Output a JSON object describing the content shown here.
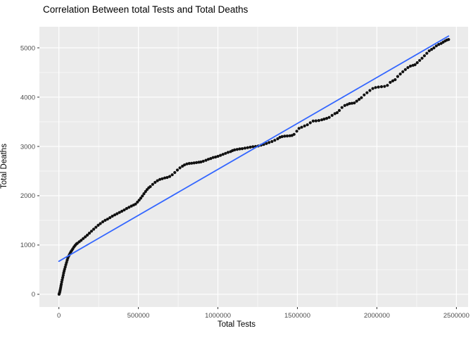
{
  "chart_data": {
    "type": "scatter",
    "title": "Correlation Between total Tests and Total Deaths",
    "xlabel": "Total Tests",
    "ylabel": "Total Deaths",
    "x_ticks": [
      0,
      500000,
      1000000,
      1500000,
      2000000,
      2500000
    ],
    "x_tick_labels": [
      "0",
      "500000",
      "1000000",
      "1500000",
      "2000000",
      "2500000"
    ],
    "y_ticks": [
      0,
      1000,
      2000,
      3000,
      4000,
      5000
    ],
    "y_tick_labels": [
      "0",
      "1000",
      "2000",
      "3000",
      "4000",
      "5000"
    ],
    "xlim": [
      -122500,
      2573500
    ],
    "ylim": [
      -258,
      5428
    ],
    "grid": "major-and-minor",
    "legend": "none",
    "panel_bg": "#EBEBEB",
    "grid_color": "#FFFFFF",
    "tick_color": "#333333",
    "tick_text_color": "#4D4D4D",
    "point_color": "#111111",
    "point_radius": 2.1,
    "trend_line": {
      "color": "#3366FF",
      "width": 1.8,
      "x": [
        0,
        2451000
      ],
      "y": [
        670,
        5240
      ]
    },
    "points": [
      [
        1000,
        0
      ],
      [
        3000,
        15
      ],
      [
        5000,
        40
      ],
      [
        7000,
        70
      ],
      [
        9000,
        100
      ],
      [
        11000,
        135
      ],
      [
        13000,
        170
      ],
      [
        15000,
        205
      ],
      [
        18000,
        250
      ],
      [
        21000,
        295
      ],
      [
        24000,
        340
      ],
      [
        27000,
        385
      ],
      [
        30000,
        430
      ],
      [
        33000,
        470
      ],
      [
        36000,
        510
      ],
      [
        40000,
        555
      ],
      [
        44000,
        600
      ],
      [
        48000,
        645
      ],
      [
        52000,
        690
      ],
      [
        56000,
        730
      ],
      [
        61000,
        770
      ],
      [
        66000,
        805
      ],
      [
        71000,
        835
      ],
      [
        76000,
        865
      ],
      [
        82000,
        895
      ],
      [
        88000,
        925
      ],
      [
        95000,
        960
      ],
      [
        102000,
        990
      ],
      [
        110000,
        1020
      ],
      [
        116000,
        1035
      ],
      [
        128000,
        1065
      ],
      [
        140000,
        1095
      ],
      [
        153000,
        1130
      ],
      [
        166000,
        1165
      ],
      [
        179000,
        1200
      ],
      [
        192000,
        1240
      ],
      [
        205000,
        1280
      ],
      [
        219000,
        1320
      ],
      [
        233000,
        1360
      ],
      [
        247000,
        1400
      ],
      [
        261000,
        1435
      ],
      [
        276000,
        1470
      ],
      [
        291000,
        1500
      ],
      [
        306000,
        1525
      ],
      [
        321000,
        1555
      ],
      [
        336000,
        1585
      ],
      [
        351000,
        1610
      ],
      [
        366000,
        1635
      ],
      [
        381000,
        1660
      ],
      [
        396000,
        1685
      ],
      [
        411000,
        1710
      ],
      [
        426000,
        1740
      ],
      [
        441000,
        1765
      ],
      [
        456000,
        1790
      ],
      [
        470000,
        1810
      ],
      [
        482000,
        1830
      ],
      [
        494000,
        1870
      ],
      [
        505000,
        1910
      ],
      [
        515000,
        1950
      ],
      [
        525000,
        1995
      ],
      [
        535000,
        2040
      ],
      [
        545000,
        2085
      ],
      [
        555000,
        2125
      ],
      [
        565000,
        2160
      ],
      [
        575000,
        2185
      ],
      [
        590000,
        2230
      ],
      [
        605000,
        2270
      ],
      [
        620000,
        2305
      ],
      [
        635000,
        2330
      ],
      [
        650000,
        2345
      ],
      [
        666000,
        2360
      ],
      [
        681000,
        2370
      ],
      [
        697000,
        2390
      ],
      [
        713000,
        2425
      ],
      [
        729000,
        2470
      ],
      [
        745000,
        2520
      ],
      [
        761000,
        2565
      ],
      [
        777000,
        2600
      ],
      [
        790000,
        2625
      ],
      [
        805000,
        2645
      ],
      [
        820000,
        2655
      ],
      [
        835000,
        2660
      ],
      [
        850000,
        2665
      ],
      [
        865000,
        2672
      ],
      [
        880000,
        2680
      ],
      [
        893000,
        2685
      ],
      [
        908000,
        2700
      ],
      [
        925000,
        2720
      ],
      [
        940000,
        2740
      ],
      [
        955000,
        2755
      ],
      [
        970000,
        2775
      ],
      [
        985000,
        2785
      ],
      [
        1000000,
        2800
      ],
      [
        1016000,
        2820
      ],
      [
        1032000,
        2840
      ],
      [
        1048000,
        2860
      ],
      [
        1064000,
        2880
      ],
      [
        1080000,
        2895
      ],
      [
        1092000,
        2915
      ],
      [
        1105000,
        2930
      ],
      [
        1121000,
        2940
      ],
      [
        1137000,
        2950
      ],
      [
        1153000,
        2955
      ],
      [
        1170000,
        2965
      ],
      [
        1187000,
        2975
      ],
      [
        1204000,
        2985
      ],
      [
        1220000,
        2995
      ],
      [
        1237000,
        3000
      ],
      [
        1254000,
        3010
      ],
      [
        1271000,
        3025
      ],
      [
        1288000,
        3040
      ],
      [
        1305000,
        3060
      ],
      [
        1322000,
        3080
      ],
      [
        1340000,
        3100
      ],
      [
        1358000,
        3125
      ],
      [
        1376000,
        3155
      ],
      [
        1390000,
        3185
      ],
      [
        1404000,
        3200
      ],
      [
        1420000,
        3208
      ],
      [
        1436000,
        3212
      ],
      [
        1452000,
        3216
      ],
      [
        1466000,
        3222
      ],
      [
        1479000,
        3245
      ],
      [
        1496000,
        3310
      ],
      [
        1510000,
        3365
      ],
      [
        1527000,
        3390
      ],
      [
        1545000,
        3415
      ],
      [
        1563000,
        3440
      ],
      [
        1581000,
        3480
      ],
      [
        1599000,
        3515
      ],
      [
        1617000,
        3520
      ],
      [
        1635000,
        3527
      ],
      [
        1653000,
        3540
      ],
      [
        1668000,
        3555
      ],
      [
        1684000,
        3570
      ],
      [
        1700000,
        3590
      ],
      [
        1718000,
        3630
      ],
      [
        1736000,
        3665
      ],
      [
        1750000,
        3685
      ],
      [
        1764000,
        3730
      ],
      [
        1780000,
        3790
      ],
      [
        1798000,
        3830
      ],
      [
        1814000,
        3850
      ],
      [
        1828000,
        3870
      ],
      [
        1843000,
        3875
      ],
      [
        1858000,
        3882
      ],
      [
        1873000,
        3920
      ],
      [
        1888000,
        3955
      ],
      [
        1903000,
        3990
      ],
      [
        1920000,
        4045
      ],
      [
        1938000,
        4090
      ],
      [
        1956000,
        4135
      ],
      [
        1974000,
        4175
      ],
      [
        1992000,
        4195
      ],
      [
        2010000,
        4205
      ],
      [
        2029000,
        4212
      ],
      [
        2048000,
        4218
      ],
      [
        2066000,
        4240
      ],
      [
        2084000,
        4300
      ],
      [
        2100000,
        4330
      ],
      [
        2115000,
        4355
      ],
      [
        2131000,
        4420
      ],
      [
        2147000,
        4470
      ],
      [
        2163000,
        4515
      ],
      [
        2179000,
        4560
      ],
      [
        2195000,
        4600
      ],
      [
        2211000,
        4630
      ],
      [
        2227000,
        4645
      ],
      [
        2240000,
        4658
      ],
      [
        2254000,
        4700
      ],
      [
        2269000,
        4745
      ],
      [
        2284000,
        4790
      ],
      [
        2299000,
        4840
      ],
      [
        2314000,
        4890
      ],
      [
        2329000,
        4940
      ],
      [
        2344000,
        4970
      ],
      [
        2359000,
        5000
      ],
      [
        2374000,
        5040
      ],
      [
        2389000,
        5070
      ],
      [
        2404000,
        5090
      ],
      [
        2417000,
        5115
      ],
      [
        2429000,
        5140
      ],
      [
        2440000,
        5158
      ],
      [
        2451000,
        5170
      ]
    ]
  }
}
